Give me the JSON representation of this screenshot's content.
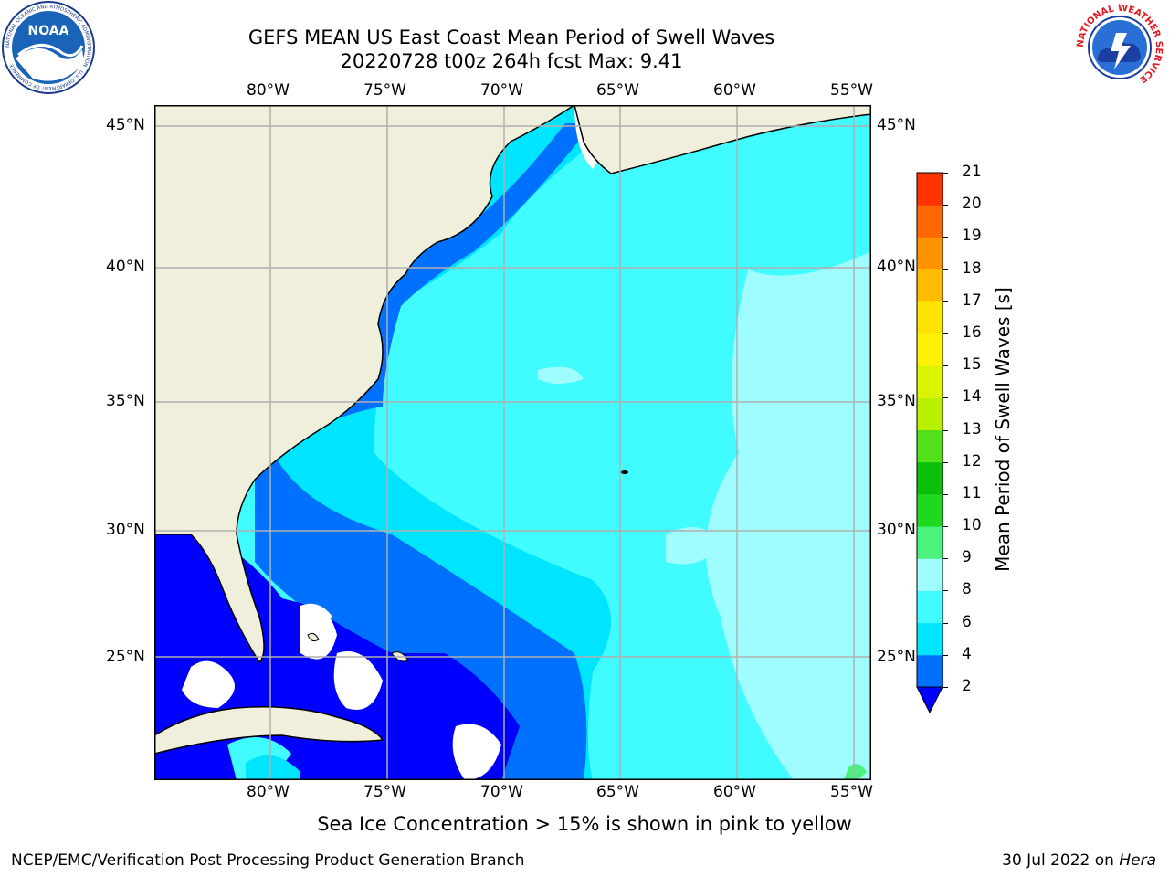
{
  "header": {
    "title_line1": "GEFS MEAN US East Coast Mean Period of Swell Waves",
    "title_line2": "20220728 t00z 264h fcst   Max: 9.41"
  },
  "logos": {
    "left": {
      "icon": "noaa-logo",
      "text": "NOAA",
      "ring_text": "NATIONAL OCEANIC AND ATMOSPHERIC ADMINISTRATION · U.S. DEPARTMENT OF COMMERCE"
    },
    "right": {
      "icon": "nws-logo",
      "ring_text": "NATIONAL WEATHER SERVICE"
    }
  },
  "map": {
    "lon_labels": [
      "80°W",
      "75°W",
      "70°W",
      "65°W",
      "60°W",
      "55°W"
    ],
    "lat_labels": [
      "45°N",
      "40°N",
      "35°N",
      "30°N",
      "25°N"
    ],
    "colors": {
      "land": "#efefdc",
      "coast": "#000000",
      "grid": "#b0b0b0",
      "no_data": "#ffffff"
    }
  },
  "colorbar": {
    "title": "Mean Period of Swell Waves [s]",
    "tick_labels": [
      "2",
      "4",
      "6",
      "8",
      "9",
      "10",
      "11",
      "12",
      "13",
      "14",
      "15",
      "16",
      "17",
      "18",
      "19",
      "20",
      "21"
    ],
    "colors": [
      "#0070ff",
      "#00e5ff",
      "#40fbff",
      "#9ffcff",
      "#4cf27e",
      "#1fd81f",
      "#0bc00b",
      "#52e01a",
      "#b8f000",
      "#ddf400",
      "#fff200",
      "#ffe300",
      "#ffbb00",
      "#ff9300",
      "#ff6800",
      "#ff3300",
      "#ff0000"
    ],
    "under_color": "#0000ff"
  },
  "footer": {
    "ice_note": "Sea Ice Concentration > 15% is shown in pink to yellow",
    "left": "NCEP/EMC/Verification Post Processing Product Generation Branch",
    "date": "30 Jul 2022 on ",
    "machine": "Hera"
  }
}
